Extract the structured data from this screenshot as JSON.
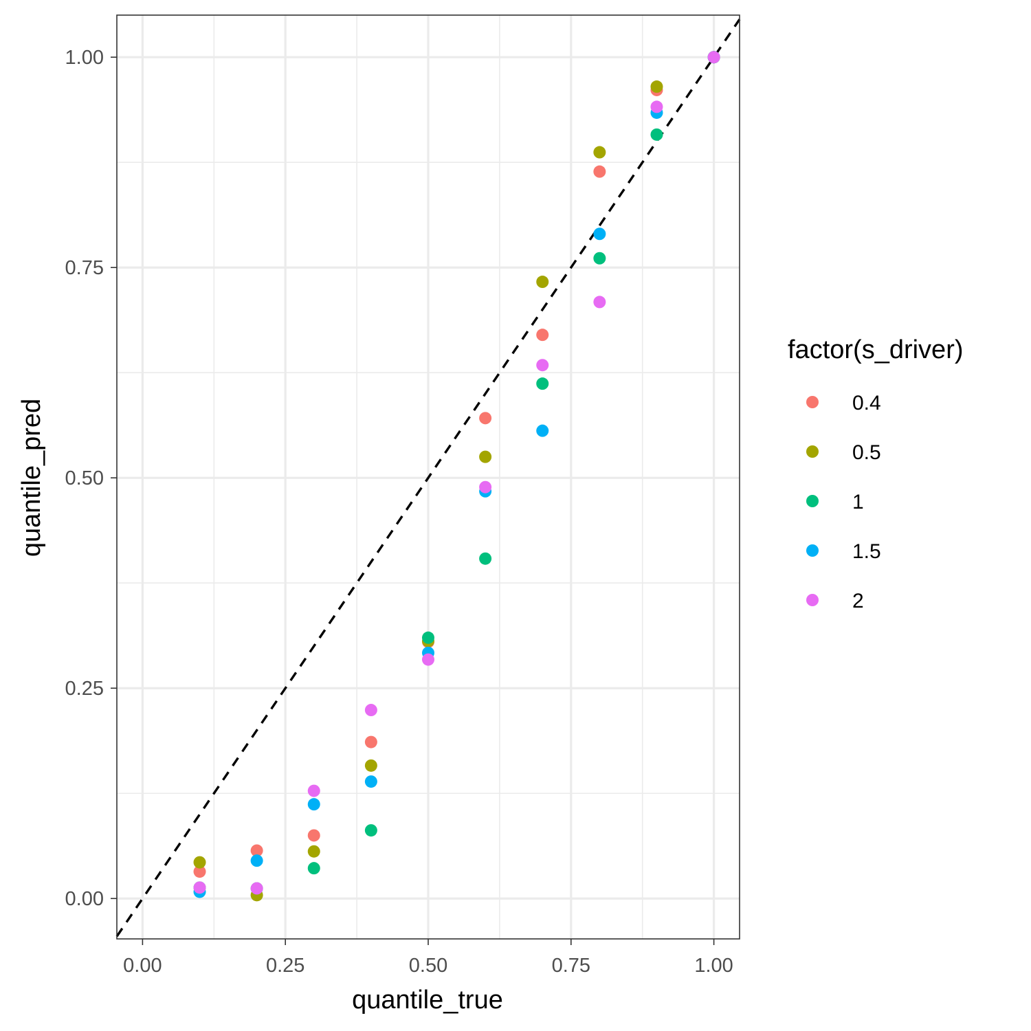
{
  "chart_data": {
    "type": "scatter",
    "title": "",
    "xlabel": "quantile_true",
    "ylabel": "quantile_pred",
    "xlim": [
      -0.045,
      1.045
    ],
    "ylim": [
      -0.048,
      1.05
    ],
    "x_ticks": [
      0,
      0.25,
      0.5,
      0.75,
      1
    ],
    "x_tick_labels": [
      "0.00",
      "0.25",
      "0.50",
      "0.75",
      "1.00"
    ],
    "y_ticks": [
      0,
      0.25,
      0.5,
      0.75,
      1
    ],
    "y_tick_labels": [
      "0.00",
      "0.25",
      "0.50",
      "0.75",
      "1.00"
    ],
    "grid": true,
    "reference_line": {
      "type": "identity",
      "style": "dashed",
      "color": "#000000"
    },
    "legend": {
      "title": "factor(s_driver)",
      "position": "right"
    },
    "series": [
      {
        "name": "0.4",
        "color": "#F8766D",
        "x": [
          0.1,
          0.2,
          0.3,
          0.4,
          0.5,
          0.6,
          0.7,
          0.8,
          0.9,
          1.0
        ],
        "y": [
          0.032,
          0.057,
          0.075,
          0.186,
          0.305,
          0.571,
          0.67,
          0.864,
          0.961,
          1.0
        ]
      },
      {
        "name": "0.5",
        "color": "#A3A500",
        "x": [
          0.1,
          0.2,
          0.3,
          0.4,
          0.5,
          0.6,
          0.7,
          0.8,
          0.9,
          1.0
        ],
        "y": [
          0.043,
          0.004,
          0.056,
          0.158,
          0.306,
          0.525,
          0.733,
          0.887,
          0.965,
          1.0
        ]
      },
      {
        "name": "1",
        "color": "#00BF7D",
        "x": [
          0.1,
          0.2,
          0.3,
          0.4,
          0.5,
          0.6,
          0.7,
          0.8,
          0.9,
          1.0
        ],
        "y": [
          0.013,
          0.012,
          0.036,
          0.081,
          0.31,
          0.404,
          0.612,
          0.761,
          0.908,
          1.0
        ]
      },
      {
        "name": "1.5",
        "color": "#00B0F6",
        "x": [
          0.1,
          0.2,
          0.3,
          0.4,
          0.5,
          0.6,
          0.7,
          0.8,
          0.9,
          1.0
        ],
        "y": [
          0.008,
          0.045,
          0.112,
          0.139,
          0.292,
          0.484,
          0.556,
          0.79,
          0.934,
          1.0
        ]
      },
      {
        "name": "2",
        "color": "#E76BF3",
        "x": [
          0.1,
          0.2,
          0.3,
          0.4,
          0.5,
          0.6,
          0.7,
          0.8,
          0.9,
          1.0
        ],
        "y": [
          0.013,
          0.012,
          0.128,
          0.224,
          0.284,
          0.489,
          0.634,
          0.709,
          0.941,
          1.0
        ]
      }
    ]
  }
}
